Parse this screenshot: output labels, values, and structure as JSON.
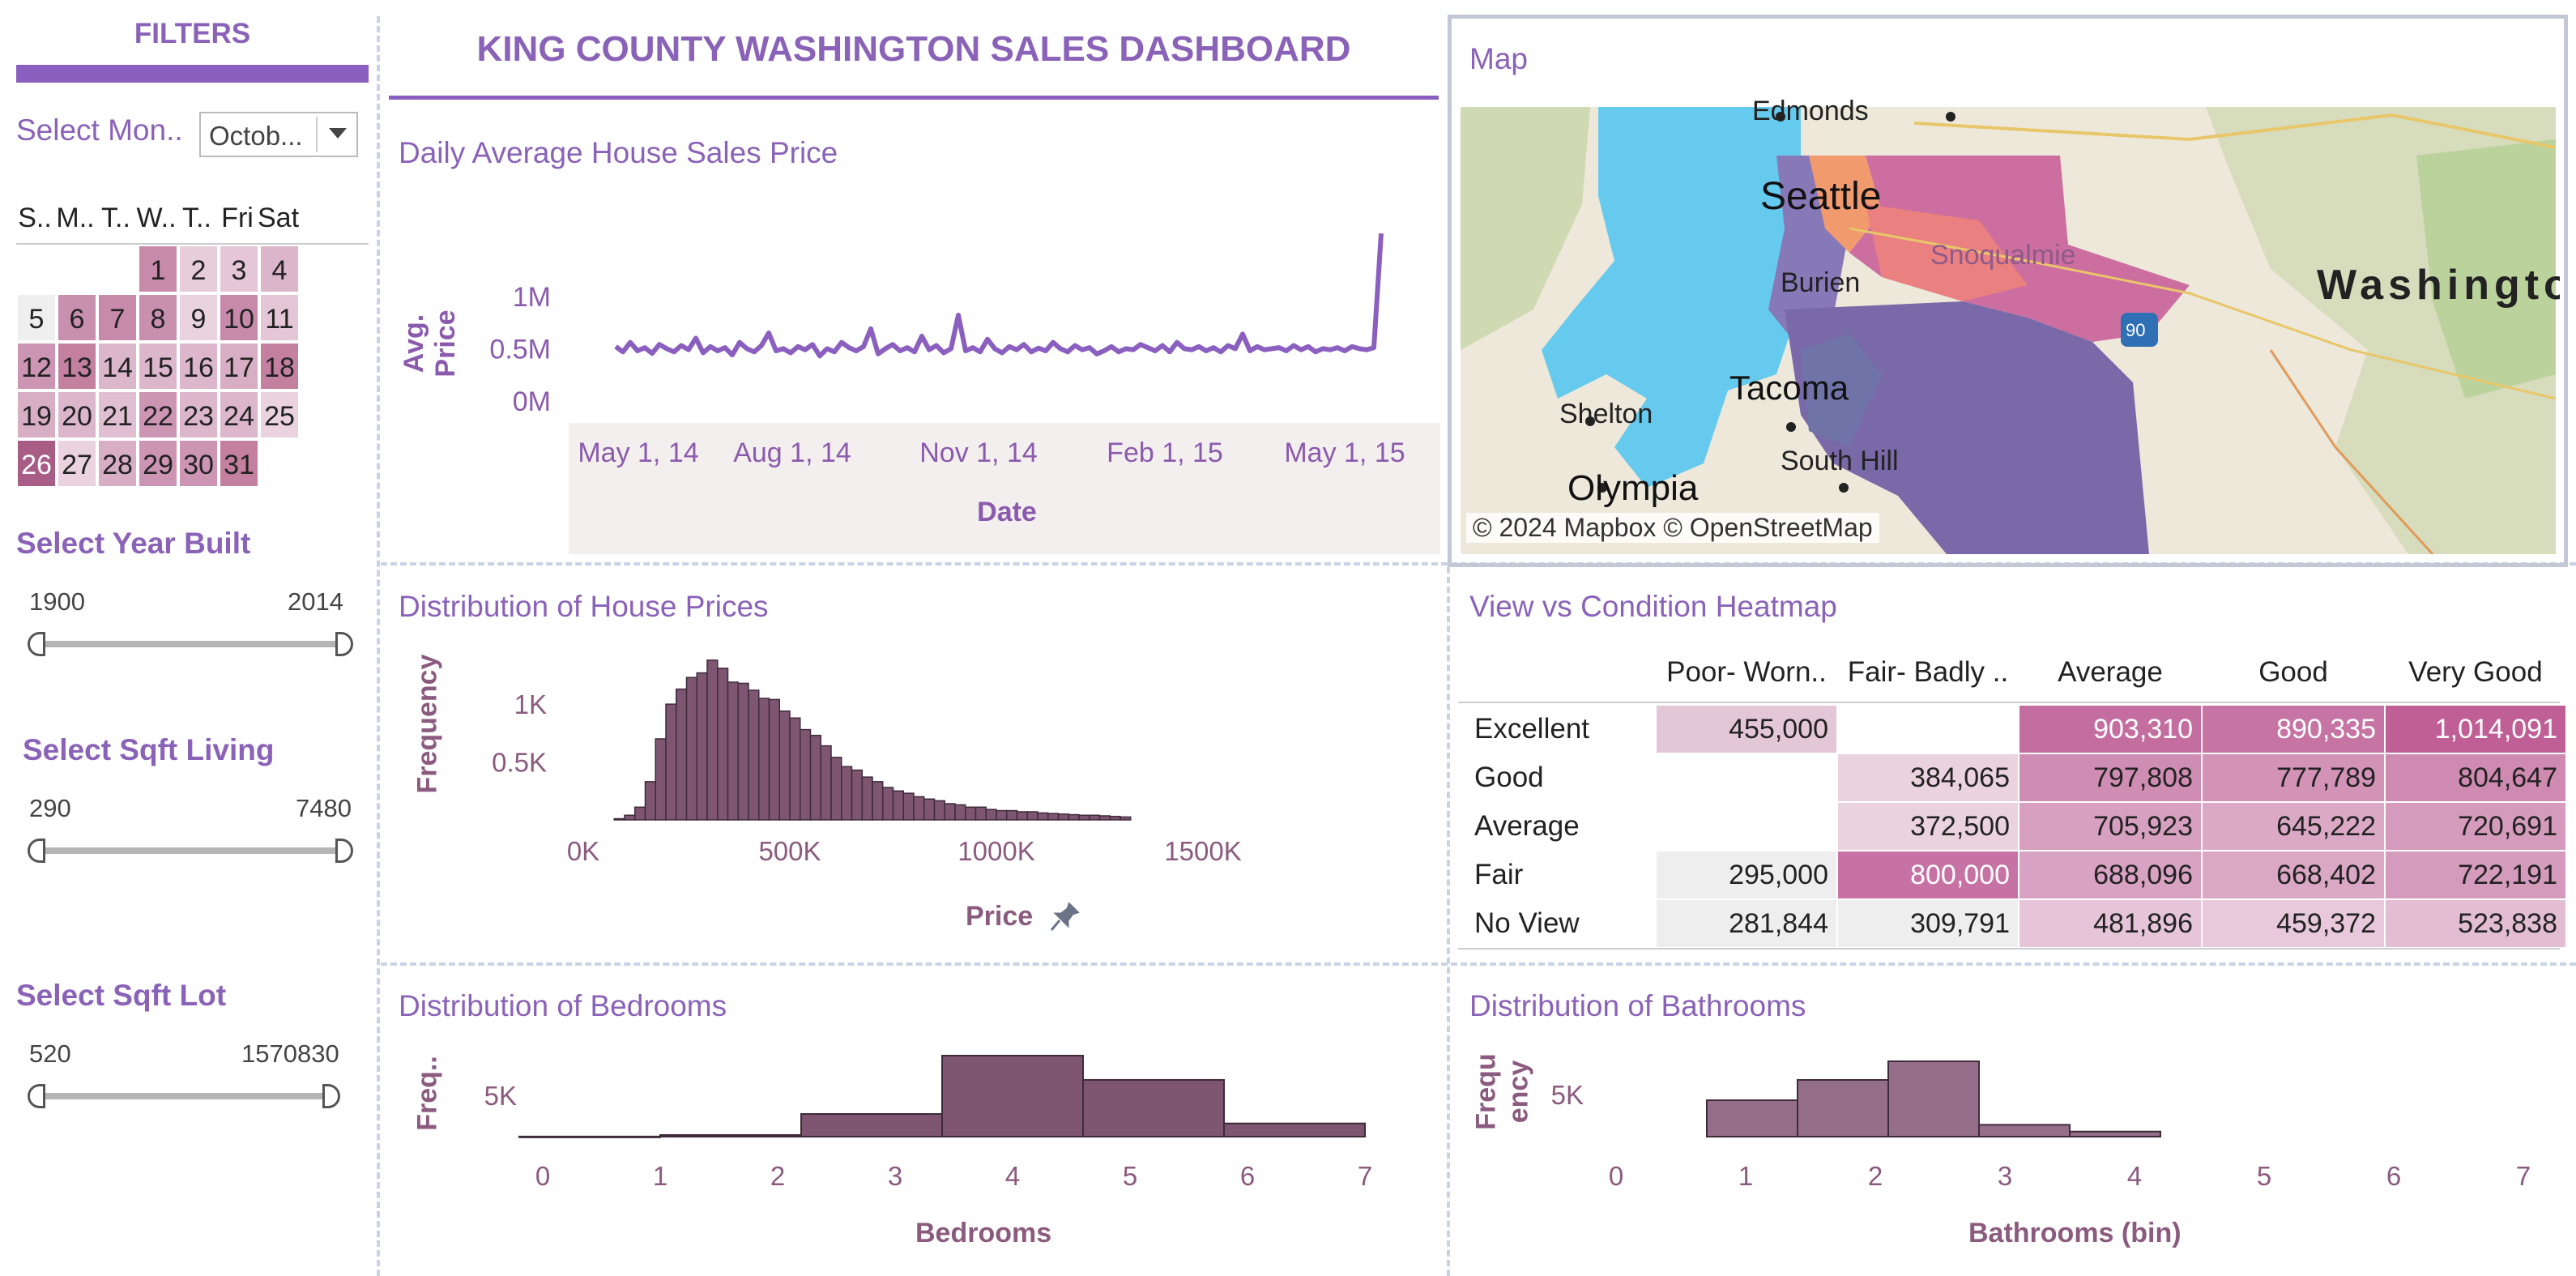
{
  "dashboard_title": "KING COUNTY WASHINGTON SALES DASHBOARD",
  "filters": {
    "header": "FILTERS",
    "month_label": "Select Mon..",
    "month_value": "Octob...",
    "calendar_headers": [
      "S..",
      "M..",
      "T..",
      "W..",
      "T..",
      "Fri",
      "Sat"
    ],
    "calendar_days": [
      {
        "day": "1",
        "col": 3,
        "row": 0,
        "shade": "#c78aaa"
      },
      {
        "day": "2",
        "col": 4,
        "row": 0,
        "shade": "#e7ccda"
      },
      {
        "day": "3",
        "col": 5,
        "row": 0,
        "shade": "#e4c6d6"
      },
      {
        "day": "4",
        "col": 6,
        "row": 0,
        "shade": "#dbb6ca"
      },
      {
        "day": "5",
        "col": 0,
        "row": 1,
        "shade": "#efefef"
      },
      {
        "day": "6",
        "col": 1,
        "row": 1,
        "shade": "#c98fae"
      },
      {
        "day": "7",
        "col": 2,
        "row": 1,
        "shade": "#c78aaa"
      },
      {
        "day": "8",
        "col": 3,
        "row": 1,
        "shade": "#c98fae"
      },
      {
        "day": "9",
        "col": 4,
        "row": 1,
        "shade": "#ead3df"
      },
      {
        "day": "10",
        "col": 5,
        "row": 1,
        "shade": "#c78aaa"
      },
      {
        "day": "11",
        "col": 6,
        "row": 1,
        "shade": "#e4c6d6"
      },
      {
        "day": "12",
        "col": 0,
        "row": 2,
        "shade": "#cc95b3"
      },
      {
        "day": "13",
        "col": 1,
        "row": 2,
        "shade": "#c3809f"
      },
      {
        "day": "14",
        "col": 2,
        "row": 2,
        "shade": "#dcb7cb"
      },
      {
        "day": "15",
        "col": 3,
        "row": 2,
        "shade": "#dcb7cb"
      },
      {
        "day": "16",
        "col": 4,
        "row": 2,
        "shade": "#dcb7cb"
      },
      {
        "day": "17",
        "col": 5,
        "row": 2,
        "shade": "#d8aec4"
      },
      {
        "day": "18",
        "col": 6,
        "row": 2,
        "shade": "#c3809f"
      },
      {
        "day": "19",
        "col": 0,
        "row": 3,
        "shade": "#d8aec4"
      },
      {
        "day": "20",
        "col": 1,
        "row": 3,
        "shade": "#dcb7cb"
      },
      {
        "day": "21",
        "col": 2,
        "row": 3,
        "shade": "#e1bfd2"
      },
      {
        "day": "22",
        "col": 3,
        "row": 3,
        "shade": "#cc95b3"
      },
      {
        "day": "23",
        "col": 4,
        "row": 3,
        "shade": "#dcb7cb"
      },
      {
        "day": "24",
        "col": 5,
        "row": 3,
        "shade": "#dcb7cb"
      },
      {
        "day": "25",
        "col": 6,
        "row": 3,
        "shade": "#ead3df"
      },
      {
        "day": "26",
        "col": 0,
        "row": 4,
        "shade": "#a85d86"
      },
      {
        "day": "27",
        "col": 1,
        "row": 4,
        "shade": "#ead3df"
      },
      {
        "day": "28",
        "col": 2,
        "row": 4,
        "shade": "#d8aec4"
      },
      {
        "day": "29",
        "col": 3,
        "row": 4,
        "shade": "#cc95b3"
      },
      {
        "day": "30",
        "col": 4,
        "row": 4,
        "shade": "#cc95b3"
      },
      {
        "day": "31",
        "col": 5,
        "row": 4,
        "shade": "#c3809f"
      }
    ],
    "year_built": {
      "label": "Select Year Built",
      "min": "1900",
      "max": "2014"
    },
    "sqft_living": {
      "label": "Select Sqft Living",
      "min": "290",
      "max": "7480"
    },
    "sqft_lot": {
      "label": "Select Sqft Lot",
      "min": "520",
      "max": "1570830"
    }
  },
  "map": {
    "title": "Map",
    "attribution": "© 2024 Mapbox © OpenStreetMap",
    "places": [
      "Edmonds",
      "Seattle",
      "Burien",
      "Snoqualmie",
      "Washington",
      "Shelton",
      "Tacoma",
      "South Hill",
      "Olympia"
    ],
    "highway": "90"
  },
  "chart_data": [
    {
      "type": "line",
      "title": "Daily Average  House Sales Price",
      "xlabel": "Date",
      "ylabel": "Avg. Price",
      "x_ticks": [
        "May 1, 14",
        "Aug 1, 14",
        "Nov 1, 14",
        "Feb 1, 15",
        "May 1, 15"
      ],
      "y_ticks": [
        "1M",
        "0.5M",
        "0M"
      ],
      "ylim": [
        0,
        1000000
      ],
      "x_range": [
        "2014-05-02",
        "2015-05-27"
      ],
      "series": [
        {
          "values": [
            520000,
            470000,
            560000,
            480000,
            510000,
            455000,
            540000,
            500000,
            470000,
            530000,
            490000,
            600000,
            460000,
            520000,
            480000,
            510000,
            440000,
            560000,
            500000,
            470000,
            530000,
            650000,
            480000,
            500000,
            460000,
            520000,
            490000,
            540000,
            430000,
            500000,
            470000,
            560000,
            510000,
            480000,
            520000,
            690000,
            450000,
            500000,
            540000,
            480000,
            510000,
            470000,
            620000,
            490000,
            530000,
            460000,
            500000,
            820000,
            480000,
            510000,
            470000,
            590000,
            500000,
            460000,
            520000,
            490000,
            540000,
            470000,
            505000,
            480000,
            560000,
            500000,
            470000,
            530000,
            490000,
            510000,
            450000,
            480000,
            520000,
            470000,
            500000,
            490000,
            540000,
            510000,
            480000,
            530000,
            470000,
            560000,
            500000,
            490000,
            520000,
            480000,
            510000,
            470000,
            530000,
            500000,
            640000,
            480000,
            520000,
            490000,
            500000,
            510000,
            480000,
            530000,
            490000,
            520000,
            470000,
            500000,
            490000,
            510000,
            480000,
            520000,
            500000,
            490000,
            510000,
            1600000
          ]
        }
      ]
    },
    {
      "type": "bar",
      "title": "Distribution of House Prices",
      "xlabel": "Price",
      "ylabel": "Frequency",
      "x_ticks": [
        "0K",
        "500K",
        "1000K",
        "1500K"
      ],
      "y_ticks": [
        "1K",
        "0.5K"
      ],
      "bin_width": 25000,
      "bin_start": 75000,
      "ylim": [
        0,
        1500
      ],
      "values": [
        10,
        40,
        110,
        330,
        700,
        1000,
        1130,
        1230,
        1270,
        1380,
        1310,
        1190,
        1180,
        1120,
        1050,
        1040,
        940,
        880,
        780,
        730,
        640,
        540,
        460,
        430,
        370,
        330,
        280,
        250,
        230,
        200,
        180,
        165,
        140,
        130,
        110,
        110,
        90,
        80,
        80,
        70,
        70,
        60,
        55,
        50,
        45,
        40,
        40,
        35,
        30,
        25
      ]
    },
    {
      "type": "bar",
      "title": "Distribution of Bedrooms",
      "xlabel": "Bedrooms",
      "ylabel": "Freq..",
      "x_ticks": [
        "0",
        "1",
        "2",
        "3",
        "4",
        "5",
        "6",
        "7"
      ],
      "y_ticks": [
        "5K"
      ],
      "ylim": [
        0,
        10000
      ],
      "bin_edges": [
        -0.2,
        1.0,
        2.2,
        3.4,
        4.6,
        5.8,
        7.0
      ],
      "values": [
        15,
        200,
        2750,
        9820,
        6880,
        1600
      ]
    },
    {
      "type": "bar",
      "title": "Distribution of Bathrooms",
      "xlabel": "Bathrooms (bin)",
      "ylabel": "Frequency",
      "x_ticks": [
        "0",
        "1",
        "2",
        "3",
        "4",
        "5",
        "6",
        "7"
      ],
      "y_ticks": [
        "5K"
      ],
      "ylim": [
        0,
        9500
      ],
      "bin_edges": [
        0.7,
        1.4,
        2.1,
        2.8,
        3.5,
        4.2
      ],
      "values": [
        4300,
        6700,
        8900,
        1400,
        600
      ]
    },
    {
      "type": "heatmap",
      "title": "View vs Condition Heatmap",
      "columns": [
        "Poor- Worn..",
        "Fair- Badly ..",
        "Average",
        "Good",
        "Very Good"
      ],
      "rows": [
        "Excellent",
        "Good",
        "Average",
        "Fair",
        "No View"
      ],
      "cells": [
        [
          "455,000",
          "",
          "903,310",
          "890,335",
          "1,014,091"
        ],
        [
          "",
          "384,065",
          "797,808",
          "777,789",
          "804,647"
        ],
        [
          "",
          "372,500",
          "705,923",
          "645,222",
          "720,691"
        ],
        [
          "295,000",
          "800,000",
          "688,096",
          "668,402",
          "722,191"
        ],
        [
          "281,844",
          "309,791",
          "481,896",
          "459,372",
          "523,838"
        ]
      ],
      "colors": [
        [
          "#e4c7d6",
          "",
          "#c46ea0",
          "#c674a3",
          "#c05f96"
        ],
        [
          "",
          "#ead3df",
          "#d08db3",
          "#d293b7",
          "#cf8ab2"
        ],
        [
          "",
          "#ead3df",
          "#d7a0c0",
          "#dba9c5",
          "#d59bbc"
        ],
        [
          "#eeeeee",
          "#c772a4",
          "#d8a3c2",
          "#daa7c4",
          "#d59bbc"
        ],
        [
          "#eeeeee",
          "#eeeeee",
          "#e6c5d8",
          "#e8c9db",
          "#e3bed3"
        ]
      ]
    }
  ]
}
